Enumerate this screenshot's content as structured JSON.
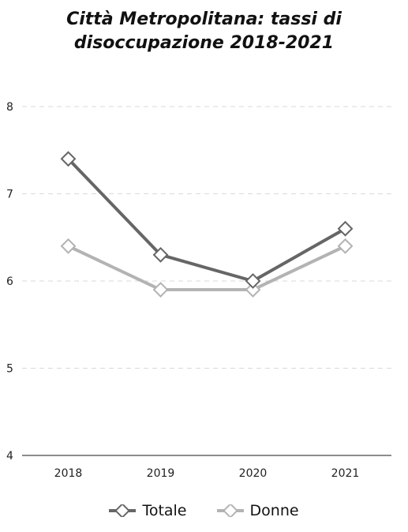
{
  "chart_data": {
    "type": "line",
    "title_line1": "Città Metropolitana: tassi di",
    "title_line2": "disoccupazione 2018-2021",
    "categories": [
      "2018",
      "2019",
      "2020",
      "2021"
    ],
    "series": [
      {
        "name": "Totale",
        "values": [
          7.4,
          6.3,
          6.0,
          6.6
        ],
        "color": "#666666"
      },
      {
        "name": "Donne",
        "values": [
          6.4,
          5.9,
          5.9,
          6.4
        ],
        "color": "#b3b3b3"
      }
    ],
    "y_ticks": [
      "4",
      "5",
      "6",
      "7",
      "8"
    ],
    "ylim": [
      4,
      8
    ],
    "grid": "horizontal-dashed",
    "legend_position": "bottom"
  }
}
